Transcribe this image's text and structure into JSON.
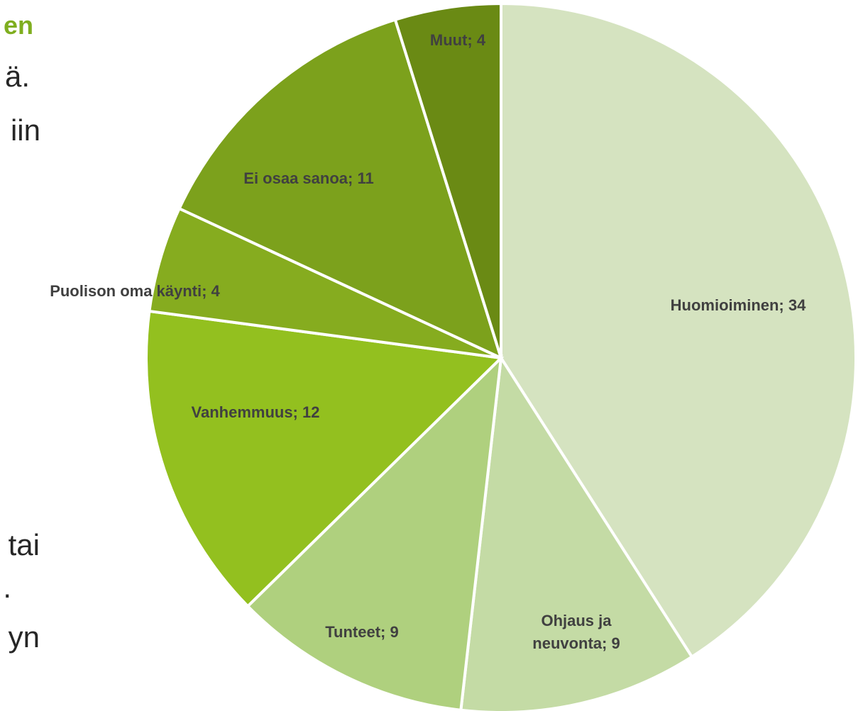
{
  "chart_data": {
    "type": "pie",
    "categories": [
      "Huomioiminen",
      "Ohjaus ja neuvonta",
      "Tunteet",
      "Vanhemmuus",
      "Puolison oma käynti",
      "Ei osaa sanoa",
      "Muut"
    ],
    "values": [
      34,
      9,
      9,
      12,
      4,
      11,
      4
    ],
    "value_labels": [
      "Huomioiminen; 34",
      "Ohjaus ja neuvonta; 9",
      "Tunteet; 9",
      "Vanhemmuus; 12",
      "Puolison oma käynti; 4",
      "Ei osaa sanoa; 11",
      "Muut; 4"
    ],
    "colors": [
      "#d5e3c0",
      "#c4dba5",
      "#afd07e",
      "#93c01f",
      "#86ac1f",
      "#7ca11c",
      "#6a8a14"
    ]
  },
  "side_text": [
    "en",
    "ä.",
    "iin",
    "tai",
    ".",
    "yn"
  ]
}
